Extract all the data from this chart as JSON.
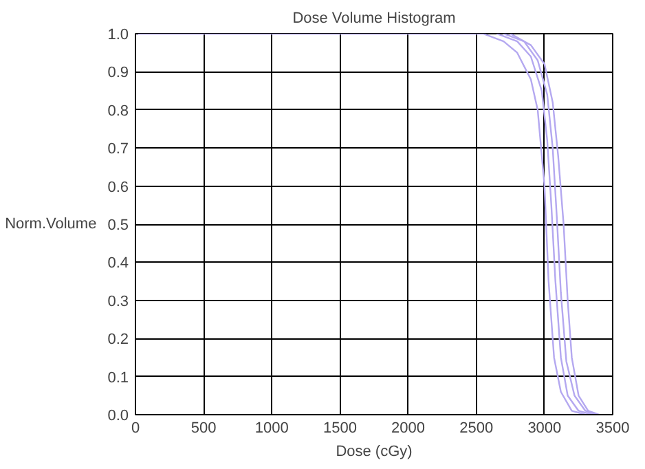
{
  "chart_data": {
    "type": "line",
    "title": "Dose Volume Histogram",
    "xlabel": "Dose (cGy)",
    "ylabel": "Norm.Volume",
    "xlim": [
      0,
      3500
    ],
    "xticks": [
      0,
      500,
      1000,
      1500,
      2000,
      2500,
      3000,
      3500
    ],
    "ylim": [
      0,
      1
    ],
    "yticks": [
      {
        "value": 0,
        "label": "0.0"
      },
      0.1,
      0.2,
      0.3,
      0.4,
      0.5,
      0.6,
      0.7,
      0.8,
      0.9,
      {
        "value": 1,
        "label": "1.0"
      }
    ],
    "grid": true,
    "marker": "none",
    "line_style": "solid",
    "series": [
      {
        "color": "#b4a8f0",
        "x": [
          0,
          2550,
          2700,
          2800,
          2900,
          2950,
          3000,
          3030,
          3070,
          3120,
          3200,
          3300
        ],
        "values": [
          1,
          1,
          0.98,
          0.95,
          0.88,
          0.8,
          0.6,
          0.35,
          0.15,
          0.06,
          0.01,
          0
        ]
      },
      {
        "color": "#b4a8f0",
        "x": [
          2650,
          2800,
          2900,
          2980,
          3020,
          3050,
          3080,
          3120,
          3170,
          3250,
          3350
        ],
        "values": [
          1,
          0.98,
          0.94,
          0.85,
          0.72,
          0.55,
          0.35,
          0.15,
          0.05,
          0.01,
          0
        ]
      },
      {
        "color": "#b4a8f0",
        "x": [
          2700,
          2850,
          2950,
          3020,
          3060,
          3090,
          3120,
          3160,
          3220,
          3300,
          3380
        ],
        "values": [
          1,
          0.98,
          0.93,
          0.84,
          0.7,
          0.52,
          0.32,
          0.14,
          0.05,
          0.01,
          0
        ]
      },
      {
        "color": "#b4a8f0",
        "x": [
          2750,
          2900,
          3000,
          3060,
          3100,
          3140,
          3170,
          3200,
          3250,
          3320,
          3400
        ],
        "values": [
          1,
          0.97,
          0.92,
          0.82,
          0.68,
          0.5,
          0.3,
          0.15,
          0.05,
          0.01,
          0
        ]
      }
    ]
  }
}
